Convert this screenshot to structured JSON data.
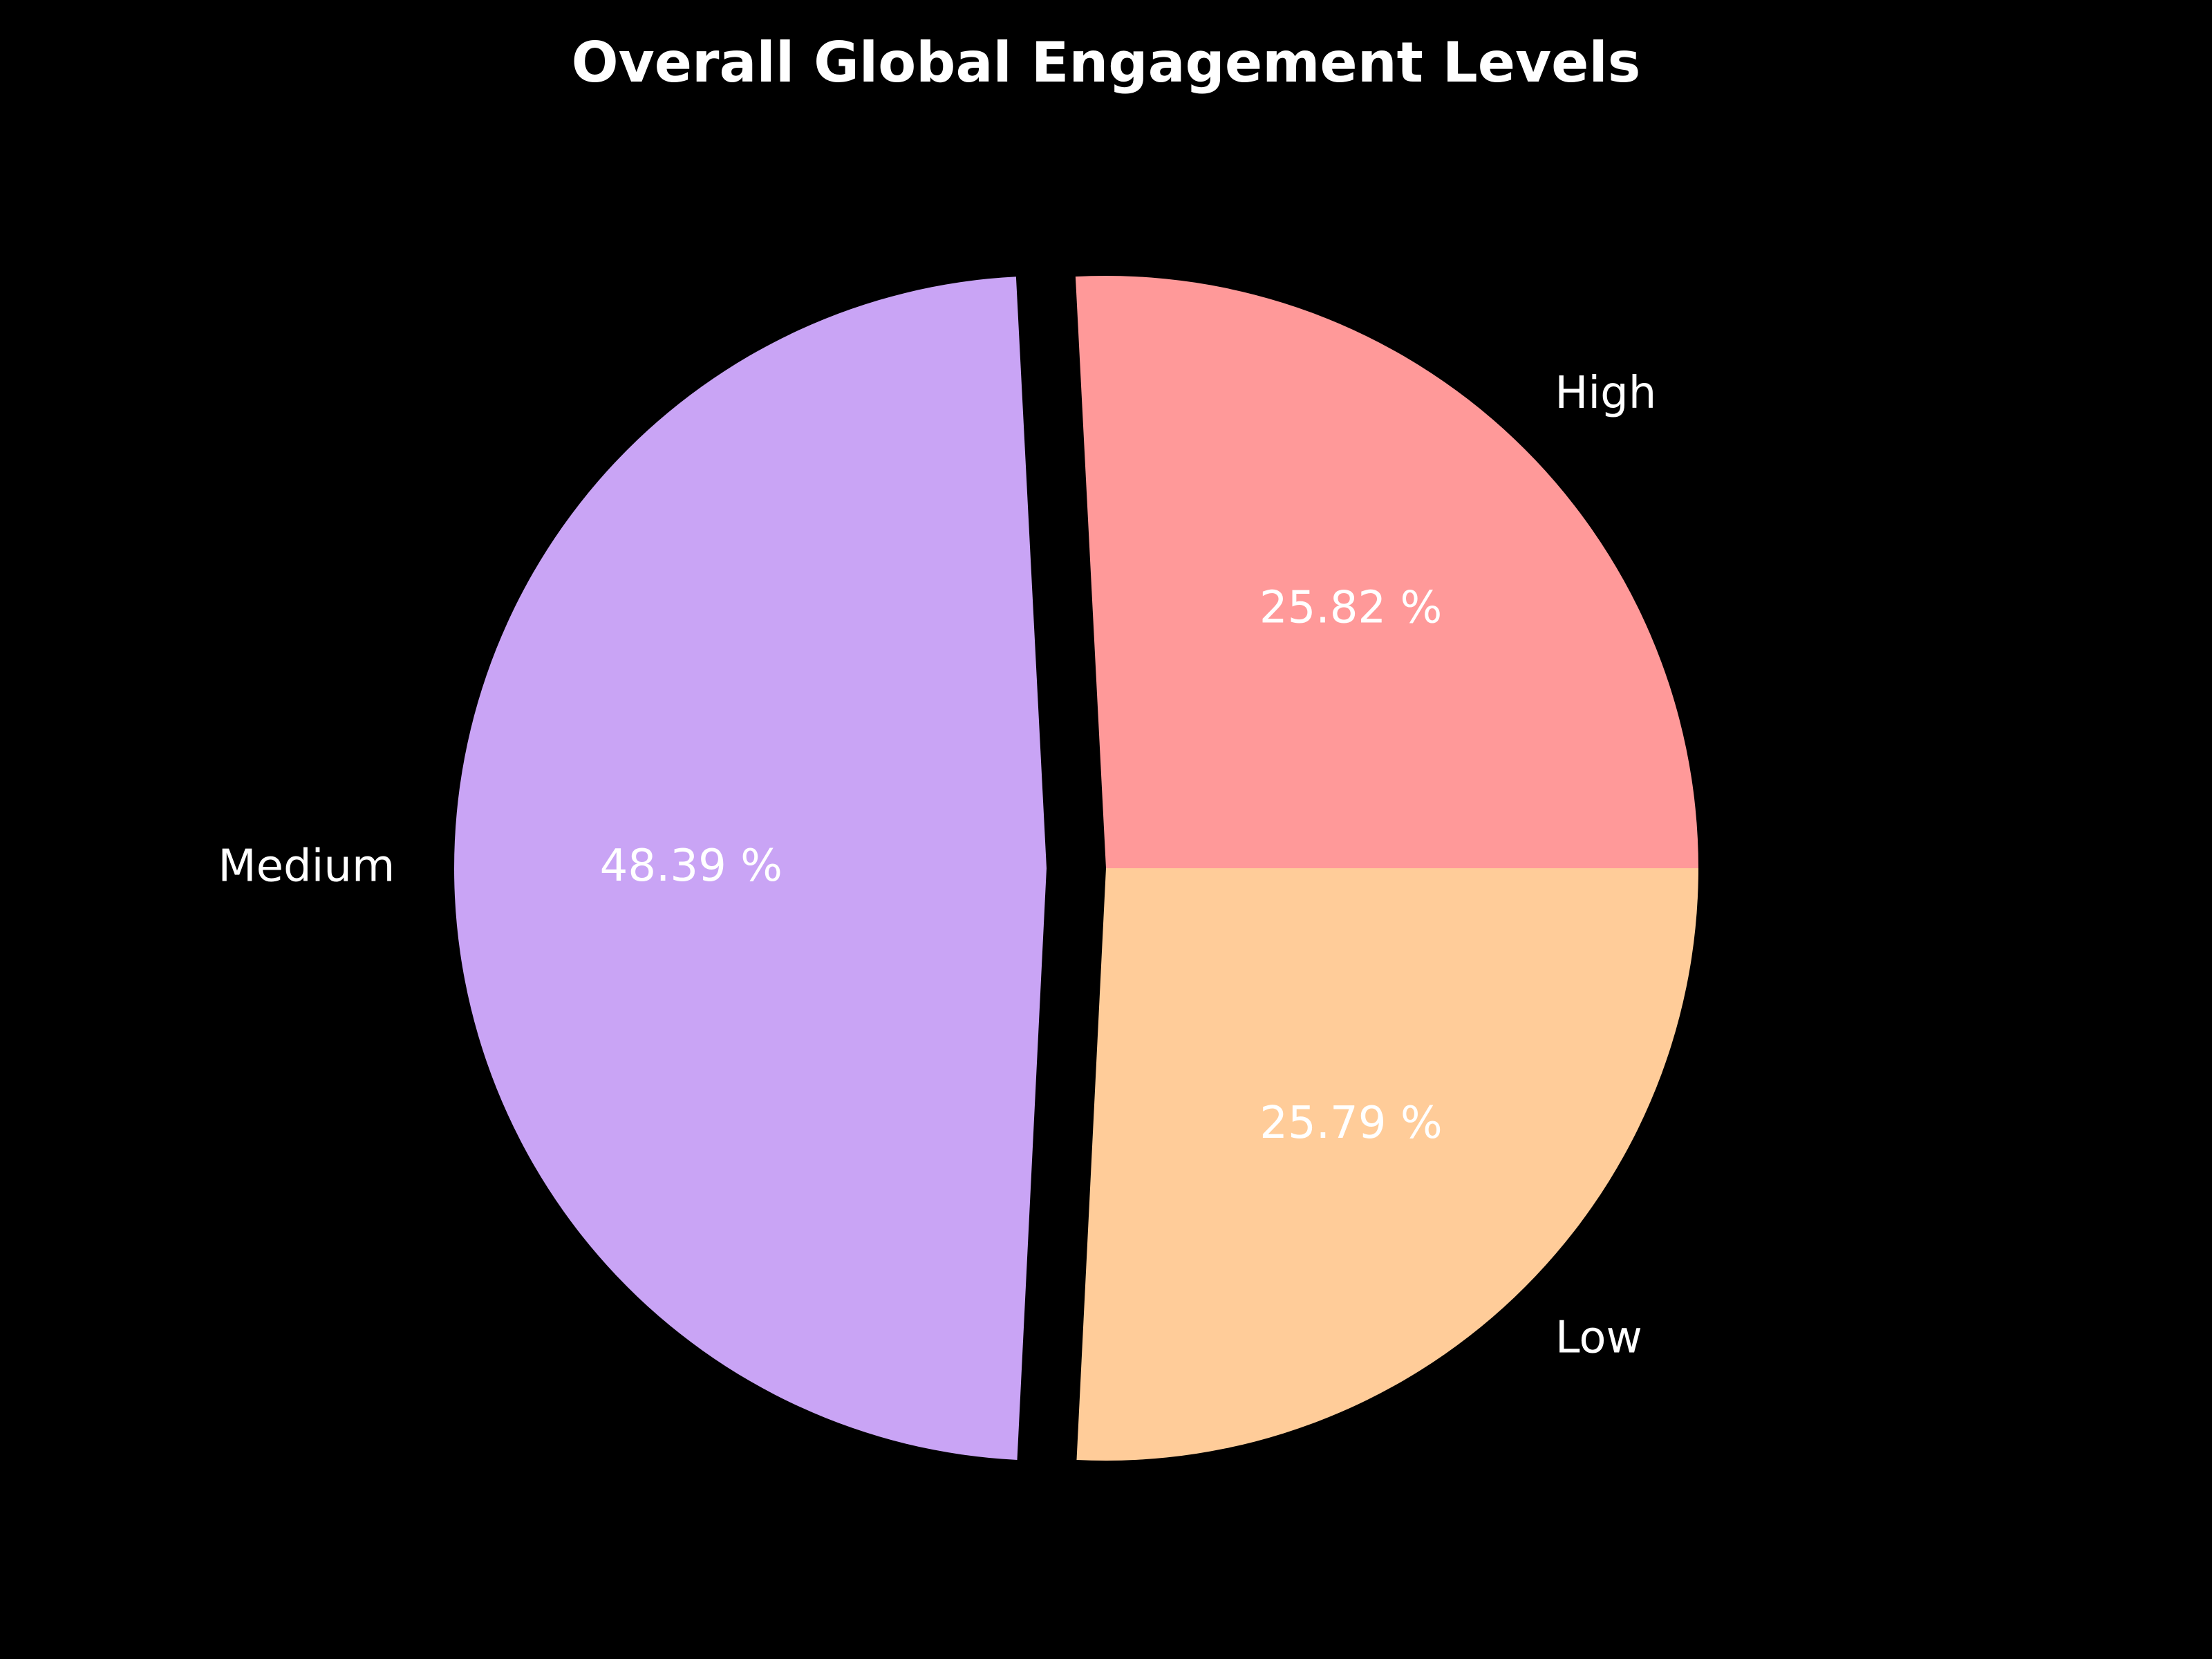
{
  "chart_data": {
    "type": "pie",
    "title": "Overall Global Engagement Levels",
    "start_angle_deg": 0,
    "direction": "counterclockwise",
    "background": "#000000",
    "slices": [
      {
        "label": "High",
        "value": 25.82,
        "pct_text": "25.82 %",
        "color": "#ff9999",
        "exploded": false
      },
      {
        "label": "Medium",
        "value": 48.39,
        "pct_text": "48.39 %",
        "color": "#c9a4f5",
        "exploded": true
      },
      {
        "label": "Low",
        "value": 25.79,
        "pct_text": "25.79 %",
        "color": "#ffcc99",
        "exploded": false
      }
    ]
  }
}
